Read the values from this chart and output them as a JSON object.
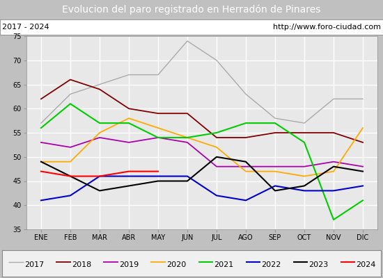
{
  "title": "Evolucion del paro registrado en Herradón de Pinares",
  "subtitle_left": "2017 - 2024",
  "subtitle_right": "http://www.foro-ciudad.com",
  "months": [
    "ENE",
    "FEB",
    "MAR",
    "ABR",
    "MAY",
    "JUN",
    "JUL",
    "AGO",
    "SEP",
    "OCT",
    "NOV",
    "DIC"
  ],
  "ylim": [
    35,
    75
  ],
  "yticks": [
    35,
    40,
    45,
    50,
    55,
    60,
    65,
    70,
    75
  ],
  "series": {
    "2017": [
      57,
      63,
      65,
      67,
      67,
      74,
      70,
      63,
      58,
      57,
      62,
      62
    ],
    "2018": [
      62,
      66,
      64,
      60,
      59,
      59,
      54,
      54,
      55,
      55,
      55,
      53
    ],
    "2019": [
      53,
      52,
      54,
      53,
      54,
      53,
      48,
      48,
      48,
      48,
      49,
      48
    ],
    "2020": [
      49,
      49,
      55,
      58,
      56,
      54,
      52,
      47,
      47,
      46,
      47,
      56
    ],
    "2021": [
      56,
      61,
      57,
      57,
      54,
      54,
      55,
      57,
      57,
      53,
      37,
      41
    ],
    "2022": [
      41,
      42,
      46,
      46,
      46,
      46,
      42,
      41,
      44,
      43,
      43,
      44
    ],
    "2023": [
      49,
      46,
      43,
      44,
      45,
      45,
      50,
      49,
      43,
      44,
      48,
      47
    ],
    "2024": [
      47,
      46,
      46,
      47,
      47,
      null,
      null,
      null,
      null,
      null,
      null,
      null
    ]
  },
  "colors": {
    "2017": "#aaaaaa",
    "2018": "#800000",
    "2019": "#aa00aa",
    "2020": "#ffaa00",
    "2021": "#00cc00",
    "2022": "#0000cc",
    "2023": "#000000",
    "2024": "#ff0000"
  },
  "linewidths": {
    "2017": 1.0,
    "2018": 1.3,
    "2019": 1.3,
    "2020": 1.3,
    "2021": 1.5,
    "2022": 1.5,
    "2023": 1.5,
    "2024": 1.5
  },
  "title_bg": "#4d7ebf",
  "title_fg": "#ffffff",
  "title_fontsize": 10,
  "sub_bg": "#ffffff",
  "sub_fontsize": 8,
  "plot_bg": "#e8e8e8",
  "grid_color": "#ffffff",
  "legend_bg": "#f0f0f0",
  "tick_fontsize": 7,
  "legend_fontsize": 8
}
